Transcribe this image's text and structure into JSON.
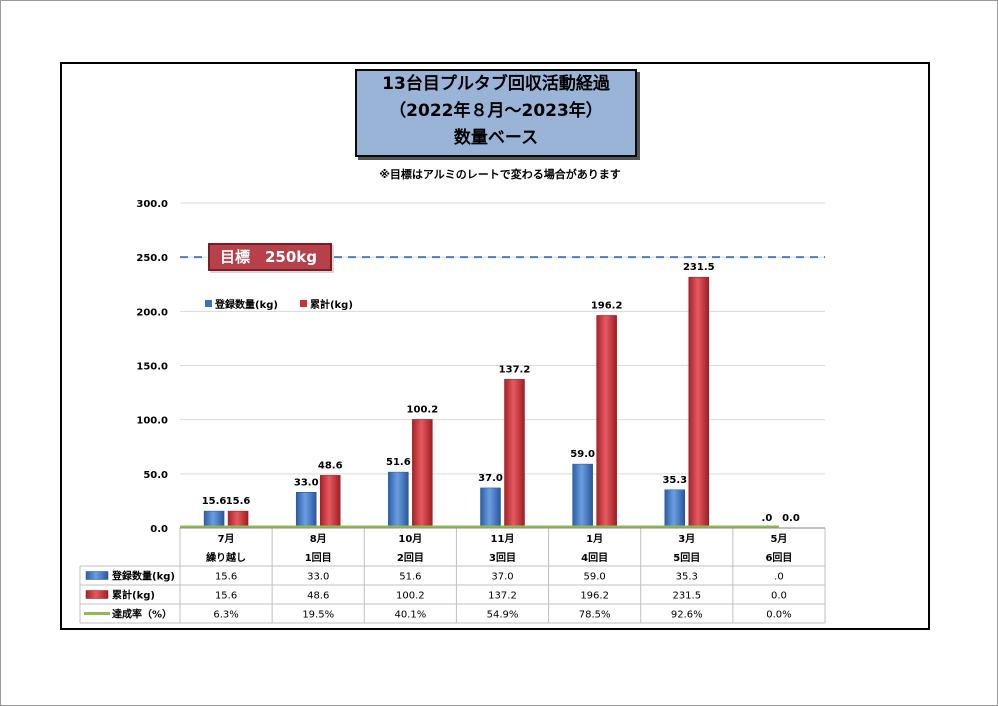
{
  "title": {
    "line1": "13台目プルタブ回収活動経過",
    "line2": "（2022年８月～2023年）",
    "line3": "数量ベース"
  },
  "note": "※目標はアルミのレートで変わる場合があります",
  "target": {
    "label": "目標　250kg",
    "value": 250
  },
  "colors": {
    "blue": "#3a72c0",
    "red": "#c8333a",
    "green": "#8cbd4a",
    "target_line": "#4a7ec6"
  },
  "chart_data": {
    "type": "bar",
    "ylim": [
      0,
      300
    ],
    "yticks": [
      "300.0",
      "250.0",
      "200.0",
      "150.0",
      "100.0",
      "50.0",
      "0.0"
    ],
    "ytick_values": [
      300,
      250,
      200,
      150,
      100,
      50,
      0
    ],
    "categories": [
      "7月",
      "8月",
      "10月",
      "11月",
      "1月",
      "3月",
      "5月"
    ],
    "subcategories": [
      "繰り越し",
      "1回目",
      "2回目",
      "3回目",
      "4回目",
      "5回目",
      "6回目"
    ],
    "series": [
      {
        "name": "登録数量(kg)",
        "values": [
          15.6,
          33.0,
          51.6,
          37.0,
          59.0,
          35.3,
          0
        ],
        "labels": [
          "15.6",
          "33.0",
          "51.6",
          "37.0",
          "59.0",
          "35.3",
          ".0"
        ]
      },
      {
        "name": "累計(kg)",
        "values": [
          15.6,
          48.6,
          100.2,
          137.2,
          196.2,
          231.5,
          0.0
        ],
        "labels": [
          "15.6",
          "48.6",
          "100.2",
          "137.2",
          "196.2",
          "231.5",
          "0.0"
        ]
      },
      {
        "name": "達成率（%）",
        "values": [
          6.3,
          19.5,
          40.1,
          54.9,
          78.5,
          92.6,
          0.0
        ],
        "labels": [
          "6.3%",
          "19.5%",
          "40.1%",
          "54.9%",
          "78.5%",
          "92.6%",
          "0.0%"
        ]
      }
    ],
    "legend": {
      "placement": "upper-left",
      "items": [
        "登録数量(kg)",
        "累計(kg)"
      ]
    },
    "grid": true
  }
}
